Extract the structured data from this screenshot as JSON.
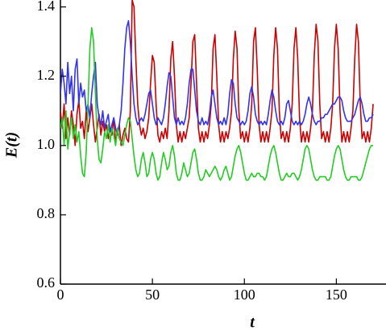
{
  "chart_data": {
    "type": "line",
    "xlabel": "t",
    "ylabel": "E(t)",
    "xlim": [
      0,
      177
    ],
    "ylim": [
      0.6,
      1.42
    ],
    "xticks": [
      0,
      50,
      100,
      150
    ],
    "yticks": [
      0.6,
      0.8,
      {
        "value": 1.0,
        "label": "1.0"
      },
      1.2,
      1.4
    ],
    "x": [
      0,
      1,
      2,
      3,
      4,
      5,
      6,
      7,
      8,
      9,
      10,
      11,
      12,
      13,
      14,
      15,
      16,
      17,
      18,
      19,
      20,
      21,
      22,
      23,
      24,
      25,
      26,
      27,
      28,
      29,
      30,
      31,
      32,
      33,
      34,
      35,
      36,
      37,
      38,
      39,
      40,
      41,
      42,
      43,
      44,
      45,
      46,
      47,
      48,
      49,
      50,
      51,
      52,
      53,
      54,
      55,
      56,
      57,
      58,
      59,
      60,
      61,
      62,
      63,
      64,
      65,
      66,
      67,
      68,
      69,
      70,
      71,
      72,
      73,
      74,
      75,
      76,
      77,
      78,
      79,
      80,
      81,
      82,
      83,
      84,
      85,
      86,
      87,
      88,
      89,
      90,
      91,
      92,
      93,
      94,
      95,
      96,
      97,
      98,
      99,
      100,
      101,
      102,
      103,
      104,
      105,
      106,
      107,
      108,
      109,
      110,
      111,
      112,
      113,
      114,
      115,
      116,
      117,
      118,
      119,
      120,
      121,
      122,
      123,
      124,
      125,
      126,
      127,
      128,
      129,
      130,
      131,
      132,
      133,
      134,
      135,
      136,
      137,
      138,
      139,
      140,
      141,
      142,
      143,
      144,
      145,
      146,
      147,
      148,
      149,
      150,
      151,
      152,
      153,
      154,
      155,
      156,
      157,
      158,
      159,
      160,
      161,
      162,
      163,
      164,
      165,
      166,
      167,
      168,
      169,
      170
    ],
    "series": [
      {
        "color": "#cc0000",
        "values": [
          1.1,
          1.05,
          1.12,
          1.02,
          1.08,
          1.03,
          1.1,
          1.06,
          1.0,
          1.09,
          1.13,
          1.05,
          1.07,
          1.02,
          1.1,
          1.04,
          1.08,
          1.12,
          1.06,
          1.01,
          1.05,
          1.09,
          1.03,
          1.07,
          1.04,
          1.06,
          1.02,
          1.05,
          1.03,
          1.08,
          1.01,
          1.04,
          1.06,
          1.0,
          1.03,
          1.05,
          1.02,
          1.01,
          1.1,
          1.42,
          1.4,
          1.25,
          1.12,
          1.06,
          1.03,
          1.05,
          1.02,
          1.04,
          1.08,
          1.18,
          1.26,
          1.24,
          1.12,
          1.03,
          1.01,
          1.04,
          1.02,
          1.05,
          1.02,
          1.1,
          1.25,
          1.3,
          1.2,
          1.06,
          1.01,
          1.04,
          1.01,
          1.04,
          1.02,
          1.05,
          1.08,
          1.18,
          1.3,
          1.32,
          1.18,
          1.05,
          1.01,
          1.04,
          1.01,
          1.04,
          1.02,
          1.06,
          1.12,
          1.28,
          1.32,
          1.2,
          1.06,
          1.01,
          1.04,
          1.01,
          1.04,
          1.02,
          1.05,
          1.1,
          1.25,
          1.33,
          1.28,
          1.1,
          1.02,
          1.04,
          1.01,
          1.04,
          1.01,
          1.05,
          1.12,
          1.3,
          1.34,
          1.22,
          1.06,
          1.01,
          1.04,
          1.01,
          1.04,
          1.01,
          1.05,
          1.1,
          1.26,
          1.34,
          1.28,
          1.1,
          1.02,
          1.04,
          1.01,
          1.04,
          1.01,
          1.05,
          1.12,
          1.28,
          1.34,
          1.25,
          1.08,
          1.01,
          1.04,
          1.01,
          1.04,
          1.01,
          1.05,
          1.1,
          1.26,
          1.35,
          1.3,
          1.12,
          1.02,
          1.04,
          1.01,
          1.04,
          1.01,
          1.05,
          1.12,
          1.28,
          1.35,
          1.28,
          1.1,
          1.01,
          1.04,
          1.01,
          1.04,
          1.01,
          1.05,
          1.1,
          1.25,
          1.35,
          1.3,
          1.12,
          1.02,
          1.04,
          1.01,
          1.04,
          1.01,
          1.05,
          1.12
        ]
      },
      {
        "color": "#3333ee",
        "values": [
          1.15,
          1.22,
          1.18,
          1.12,
          1.24,
          1.15,
          1.2,
          1.1,
          1.22,
          1.25,
          1.12,
          1.18,
          1.14,
          1.16,
          1.1,
          1.12,
          1.08,
          1.15,
          1.2,
          1.24,
          1.12,
          1.08,
          1.06,
          1.1,
          1.05,
          1.07,
          1.09,
          1.04,
          1.06,
          1.08,
          1.05,
          1.03,
          1.06,
          1.1,
          1.18,
          1.28,
          1.34,
          1.36,
          1.3,
          1.2,
          1.12,
          1.08,
          1.06,
          1.07,
          1.08,
          1.07,
          1.09,
          1.12,
          1.15,
          1.16,
          1.12,
          1.08,
          1.06,
          1.08,
          1.07,
          1.06,
          1.08,
          1.12,
          1.17,
          1.21,
          1.2,
          1.14,
          1.08,
          1.06,
          1.08,
          1.06,
          1.07,
          1.06,
          1.08,
          1.12,
          1.18,
          1.22,
          1.22,
          1.16,
          1.1,
          1.07,
          1.06,
          1.08,
          1.06,
          1.07,
          1.06,
          1.09,
          1.14,
          1.16,
          1.12,
          1.08,
          1.06,
          1.07,
          1.06,
          1.08,
          1.06,
          1.09,
          1.15,
          1.19,
          1.18,
          1.12,
          1.08,
          1.07,
          1.06,
          1.07,
          1.06,
          1.07,
          1.1,
          1.15,
          1.17,
          1.14,
          1.09,
          1.07,
          1.06,
          1.07,
          1.06,
          1.07,
          1.06,
          1.09,
          1.13,
          1.16,
          1.14,
          1.1,
          1.07,
          1.06,
          1.07,
          1.06,
          1.08,
          1.12,
          1.13,
          1.1,
          1.07,
          1.06,
          1.07,
          1.06,
          1.07,
          1.06,
          1.07,
          1.09,
          1.12,
          1.14,
          1.12,
          1.09,
          1.07,
          1.06,
          1.07,
          1.07,
          1.08,
          1.08,
          1.09,
          1.09,
          1.1,
          1.11,
          1.12,
          1.12,
          1.13,
          1.14,
          1.14,
          1.13,
          1.1,
          1.08,
          1.07,
          1.07,
          1.07,
          1.08,
          1.09,
          1.11,
          1.13,
          1.14,
          1.12,
          1.09,
          1.07,
          1.07,
          1.08,
          1.08,
          1.09
        ]
      },
      {
        "color": "#22cc22",
        "values": [
          1.05,
          1.08,
          1.0,
          1.1,
          0.99,
          1.04,
          1.08,
          1.02,
          1.06,
          1.01,
          1.04,
          0.97,
          0.92,
          0.91,
          0.98,
          1.12,
          1.28,
          1.34,
          1.3,
          1.15,
          1.02,
          0.96,
          0.95,
          0.99,
          1.04,
          1.02,
          1.06,
          1.01,
          1.05,
          1.03,
          1.0,
          1.05,
          1.02,
          1.01,
          1.0,
          1.03,
          1.06,
          1.08,
          1.07,
          1.02,
          0.97,
          0.93,
          0.91,
          0.92,
          0.96,
          0.98,
          0.95,
          0.91,
          0.92,
          0.96,
          0.98,
          0.96,
          0.92,
          0.9,
          0.91,
          0.95,
          0.98,
          0.96,
          0.93,
          0.94,
          0.98,
          1.0,
          0.97,
          0.92,
          0.9,
          0.9,
          0.92,
          0.95,
          0.93,
          0.91,
          0.92,
          0.95,
          0.98,
          0.99,
          0.96,
          0.92,
          0.9,
          0.9,
          0.91,
          0.93,
          0.92,
          0.91,
          0.92,
          0.93,
          0.94,
          0.93,
          0.91,
          0.9,
          0.91,
          0.93,
          0.94,
          0.92,
          0.9,
          0.91,
          0.94,
          0.97,
          0.99,
          1.0,
          0.98,
          0.95,
          0.92,
          0.9,
          0.9,
          0.91,
          0.92,
          0.91,
          0.91,
          0.92,
          0.92,
          0.91,
          0.91,
          0.9,
          0.91,
          0.94,
          0.97,
          0.99,
          1.0,
          0.98,
          0.95,
          0.92,
          0.9,
          0.9,
          0.91,
          0.92,
          0.91,
          0.91,
          0.92,
          0.92,
          0.91,
          0.9,
          0.91,
          0.93,
          0.96,
          0.99,
          1.0,
          0.99,
          0.96,
          0.93,
          0.91,
          0.9,
          0.9,
          0.91,
          0.91,
          0.91,
          0.91,
          0.9,
          0.9,
          0.91,
          0.94,
          0.97,
          0.99,
          1.0,
          0.99,
          0.96,
          0.93,
          0.91,
          0.9,
          0.9,
          0.91,
          0.91,
          0.91,
          0.91,
          0.9,
          0.9,
          0.91,
          0.93,
          0.95,
          0.97,
          0.99,
          1.0,
          1.0
        ]
      }
    ]
  }
}
